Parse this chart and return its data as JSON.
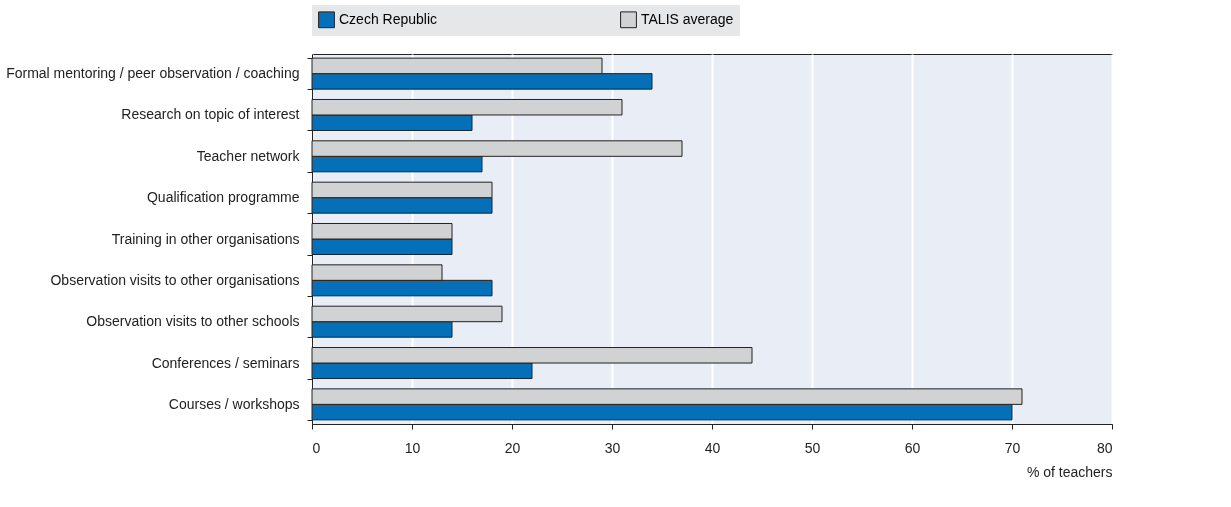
{
  "chart_data": {
    "type": "bar",
    "orientation": "horizontal",
    "xlabel": "% of teachers",
    "categories": [
      "Formal mentoring / peer observation / coaching",
      "Research on topic of interest",
      "Teacher network",
      "Qualification programme",
      "Training in other organisations",
      "Observation visits to other organisations",
      "Observation visits to other schools",
      "Conferences / seminars",
      "Courses / workshops"
    ],
    "series": [
      {
        "name": "Czech Republic",
        "color": "#0570b8",
        "values": [
          34,
          16,
          17,
          18,
          14,
          18,
          14,
          22,
          70
        ]
      },
      {
        "name": "TALIS average",
        "color": "#d1d2d4",
        "values": [
          29,
          31,
          37,
          18,
          14,
          13,
          19,
          44,
          71
        ]
      }
    ],
    "xlim": [
      0,
      80
    ],
    "xticks": [
      0,
      10,
      20,
      30,
      40,
      50,
      60,
      70,
      80
    ],
    "grid": "x",
    "legend": "top"
  }
}
